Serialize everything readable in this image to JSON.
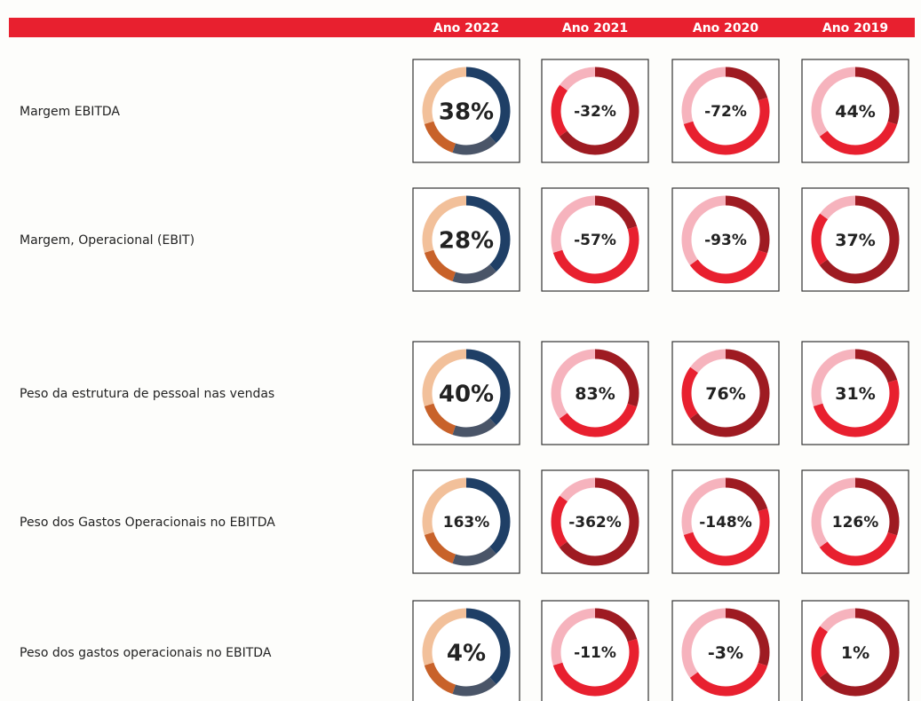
{
  "header": {
    "columns": [
      "Ano 2022",
      "Ano 2021",
      "Ano 2020",
      "Ano 2019"
    ]
  },
  "rows": [
    {
      "label": "Margem EBITDA",
      "values": [
        "38%",
        "-32%",
        "-72%",
        "44%"
      ]
    },
    {
      "label": "Margem, Operacional (EBIT)",
      "values": [
        "28%",
        "-57%",
        "-93%",
        "37%"
      ]
    },
    {
      "label": "Peso da estrutura de pessoal nas vendas",
      "values": [
        "40%",
        "83%",
        "76%",
        "31%"
      ]
    },
    {
      "label": "Peso dos Gastos Operacionais no EBITDA",
      "values": [
        "163%",
        "-362%",
        "-148%",
        "126%"
      ]
    },
    {
      "label": "Peso dos gastos operacionais no EBITDA",
      "values": [
        "4%",
        "-11%",
        "-3%",
        "1%"
      ]
    }
  ]
}
